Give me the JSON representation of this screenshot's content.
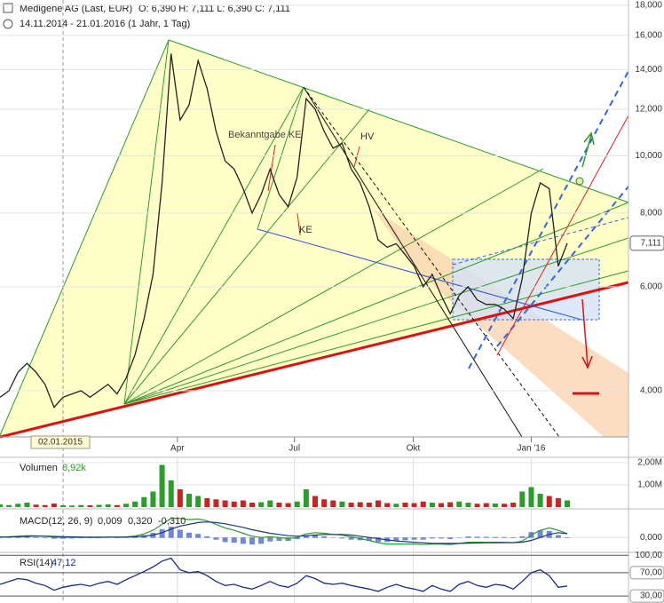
{
  "header": {
    "title": "Medigene AG (Last, EUR)",
    "ohlc": "O: 6,390  H: 7,111  L: 6,390  C: 7,111",
    "range": "14.11.2014 - 21.01.2016 (1 Jahr, 1 Tag)"
  },
  "chart_data": [
    {
      "type": "line",
      "log": true,
      "color": "#222222",
      "grid": true,
      "x": [
        0,
        1,
        2,
        3,
        4,
        5,
        6,
        7,
        8,
        9,
        10,
        11,
        12,
        13,
        14,
        15,
        16,
        17,
        18,
        19,
        20,
        21,
        22,
        23,
        24,
        25,
        26,
        27,
        28,
        29,
        30,
        31,
        32,
        33,
        34,
        35,
        36,
        37,
        38,
        39,
        40,
        41,
        42,
        43,
        44,
        45,
        46,
        47,
        48,
        49,
        50,
        51,
        52,
        53,
        54,
        55,
        56,
        57,
        58,
        59,
        60,
        61,
        62,
        63
      ],
      "values": [
        3.9,
        4.0,
        4.3,
        4.45,
        4.3,
        4.1,
        3.75,
        3.9,
        3.95,
        4.0,
        3.9,
        4.0,
        4.1,
        3.95,
        4.2,
        4.6,
        5.3,
        6.3,
        9.0,
        14.9,
        11.5,
        12.2,
        14.5,
        13.0,
        11.0,
        9.8,
        9.5,
        8.8,
        8.0,
        8.6,
        9.5,
        8.6,
        8.2,
        9.2,
        12.5,
        12.0,
        11.0,
        10.3,
        10.5,
        9.5,
        9.0,
        8.2,
        7.2,
        7.0,
        7.1,
        6.8,
        6.5,
        6.0,
        6.3,
        5.8,
        5.4,
        5.8,
        6.0,
        5.7,
        5.6,
        5.6,
        5.5,
        5.3,
        6.2,
        8.0,
        9.0,
        8.8,
        6.5,
        7.111
      ],
      "last_label": "7,111",
      "xlim": [
        0,
        69.8
      ],
      "xticks": [
        {
          "value": 19.7,
          "label": "Apr"
        },
        {
          "value": 32.7,
          "label": "Jul"
        },
        {
          "value": 45.9,
          "label": "Okt"
        },
        {
          "value": 59.0,
          "label": "Jan '16"
        }
      ],
      "crosshair": {
        "x": 7.0,
        "label": "02.01.2015"
      },
      "ylim": [
        3.34,
        18.37
      ],
      "yticks": [
        {
          "value": 4,
          "label": "4,000"
        },
        {
          "value": 6,
          "label": "6,000"
        },
        {
          "value": 8,
          "label": "8,000"
        },
        {
          "value": 10,
          "label": "10,000"
        },
        {
          "value": 12,
          "label": "12,000"
        },
        {
          "value": 14,
          "label": "14,000"
        },
        {
          "value": 16,
          "label": "16,000"
        },
        {
          "value": 18,
          "label": "18,000"
        }
      ],
      "annotations": [
        "Bekanntgabe KE",
        "HV",
        "KE"
      ]
    },
    {
      "type": "bar",
      "title": "Volumen",
      "legend_value": "8,92k",
      "up_color": "#2a9d2a",
      "down_color": "#cc2222",
      "x": [
        0,
        1,
        2,
        3,
        4,
        5,
        6,
        7,
        8,
        9,
        10,
        11,
        12,
        13,
        14,
        15,
        16,
        17,
        18,
        19,
        20,
        21,
        22,
        23,
        24,
        25,
        26,
        27,
        28,
        29,
        30,
        31,
        32,
        33,
        34,
        35,
        36,
        37,
        38,
        39,
        40,
        41,
        42,
        43,
        44,
        45,
        46,
        47,
        48,
        49,
        50,
        51,
        52,
        53,
        54,
        55,
        56,
        57,
        58,
        59,
        60,
        61,
        62,
        63
      ],
      "values": [
        120000,
        90000,
        150000,
        200000,
        110000,
        90000,
        160000,
        80000,
        70000,
        90000,
        80000,
        100000,
        120000,
        90000,
        150000,
        250000,
        450000,
        700000,
        1900000,
        1200000,
        800000,
        600000,
        500000,
        400000,
        350000,
        300000,
        250000,
        300000,
        200000,
        220000,
        300000,
        200000,
        180000,
        250000,
        800000,
        500000,
        350000,
        300000,
        250000,
        200000,
        220000,
        200000,
        300000,
        180000,
        150000,
        200000,
        180000,
        250000,
        200000,
        180000,
        220000,
        250000,
        200000,
        150000,
        180000,
        160000,
        150000,
        200000,
        700000,
        900000,
        600000,
        500000,
        400000,
        300000
      ],
      "xlim": [
        0,
        69.8
      ],
      "ylim": [
        0,
        2240000
      ],
      "yticks": [
        {
          "value": 1000000,
          "label": "1,00M"
        },
        {
          "value": 2000000,
          "label": "2,00M"
        }
      ]
    },
    {
      "type": "macd",
      "title": "MACD(12, 26, 9)",
      "legend_values": [
        "0,009",
        "0,320",
        "-0,310"
      ],
      "histogram_color": "#3355cc",
      "x": [
        0,
        1,
        2,
        3,
        4,
        5,
        6,
        7,
        8,
        9,
        10,
        11,
        12,
        13,
        14,
        15,
        16,
        17,
        18,
        19,
        20,
        21,
        22,
        23,
        24,
        25,
        26,
        27,
        28,
        29,
        30,
        31,
        32,
        33,
        34,
        35,
        36,
        37,
        38,
        39,
        40,
        41,
        42,
        43,
        44,
        45,
        46,
        47,
        48,
        49,
        50,
        51,
        52,
        53,
        54,
        55,
        56,
        57,
        58,
        59,
        60,
        61,
        62,
        63
      ],
      "series": [
        {
          "color": "#2a9d2a",
          "values": [
            0.05,
            0.06,
            0.1,
            0.15,
            0.14,
            0.1,
            0.02,
            0.0,
            0.0,
            0.01,
            0.0,
            0.01,
            0.03,
            0.02,
            0.05,
            0.12,
            0.3,
            0.6,
            1.1,
            1.6,
            1.6,
            1.5,
            1.55,
            1.4,
            1.1,
            0.8,
            0.6,
            0.35,
            0.1,
            0.0,
            0.05,
            0.0,
            -0.1,
            0.0,
            0.3,
            0.4,
            0.35,
            0.25,
            0.2,
            0.05,
            -0.1,
            -0.25,
            -0.45,
            -0.55,
            -0.55,
            -0.55,
            -0.55,
            -0.6,
            -0.55,
            -0.55,
            -0.6,
            -0.5,
            -0.4,
            -0.4,
            -0.4,
            -0.4,
            -0.4,
            -0.45,
            -0.3,
            0.2,
            0.6,
            0.8,
            0.6,
            0.32
          ]
        },
        {
          "color": "#1a3a7a",
          "values": [
            0.03,
            0.04,
            0.06,
            0.09,
            0.11,
            0.11,
            0.09,
            0.07,
            0.05,
            0.04,
            0.03,
            0.03,
            0.03,
            0.03,
            0.03,
            0.05,
            0.1,
            0.2,
            0.4,
            0.7,
            0.95,
            1.1,
            1.25,
            1.3,
            1.25,
            1.15,
            1.0,
            0.85,
            0.65,
            0.5,
            0.35,
            0.25,
            0.15,
            0.1,
            0.15,
            0.2,
            0.25,
            0.25,
            0.25,
            0.2,
            0.1,
            0.0,
            -0.1,
            -0.2,
            -0.3,
            -0.35,
            -0.4,
            -0.45,
            -0.5,
            -0.5,
            -0.5,
            -0.5,
            -0.48,
            -0.46,
            -0.45,
            -0.44,
            -0.43,
            -0.43,
            -0.4,
            -0.25,
            0.0,
            0.25,
            0.4,
            0.31
          ]
        }
      ],
      "xlim": [
        0,
        69.8
      ],
      "ylim": [
        -1.7,
        2.25
      ],
      "yticks": [
        {
          "value": 0,
          "label": "0,000"
        }
      ]
    },
    {
      "type": "line",
      "title": "RSI(14)",
      "legend_value": "47,12",
      "color": "#1a2a8a",
      "x": [
        0,
        1,
        2,
        3,
        4,
        5,
        6,
        7,
        8,
        9,
        10,
        11,
        12,
        13,
        14,
        15,
        16,
        17,
        18,
        19,
        20,
        21,
        22,
        23,
        24,
        25,
        26,
        27,
        28,
        29,
        30,
        31,
        32,
        33,
        34,
        35,
        36,
        37,
        38,
        39,
        40,
        41,
        42,
        43,
        44,
        45,
        46,
        47,
        48,
        49,
        50,
        51,
        52,
        53,
        54,
        55,
        56,
        57,
        58,
        59,
        60,
        61,
        62,
        63
      ],
      "values": [
        50,
        55,
        60,
        58,
        52,
        48,
        40,
        45,
        48,
        50,
        47,
        52,
        55,
        50,
        58,
        65,
        72,
        80,
        90,
        95,
        75,
        70,
        72,
        65,
        55,
        48,
        50,
        45,
        42,
        48,
        55,
        48,
        45,
        52,
        65,
        60,
        52,
        50,
        52,
        48,
        45,
        42,
        38,
        45,
        50,
        45,
        42,
        38,
        48,
        42,
        38,
        50,
        55,
        48,
        45,
        50,
        48,
        42,
        55,
        70,
        75,
        65,
        45,
        47.12
      ],
      "xlim": [
        0,
        69.8
      ],
      "ylim": [
        21,
        105
      ],
      "yticks": [
        {
          "value": 30,
          "label": "30,00"
        },
        {
          "value": 70,
          "label": "70,00"
        },
        {
          "value": 100,
          "label": "100,00"
        }
      ]
    }
  ]
}
